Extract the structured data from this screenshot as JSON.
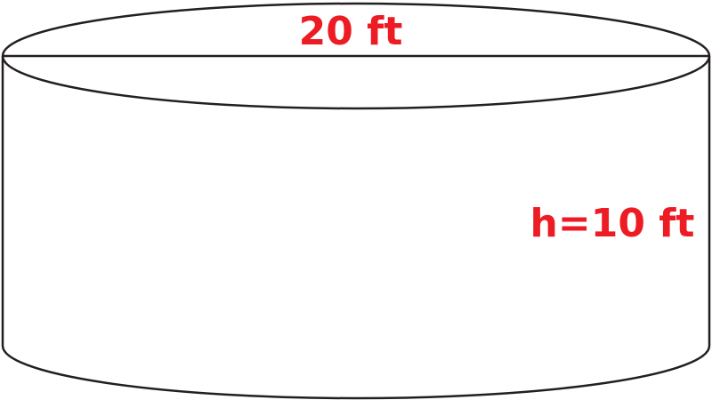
{
  "diagram": {
    "shape": "cylinder",
    "diameter_label": "20 ft",
    "height_label": "h=10 ft",
    "colors": {
      "outline": "#231f20",
      "label": "#ed1c24",
      "background": "#ffffff"
    }
  }
}
